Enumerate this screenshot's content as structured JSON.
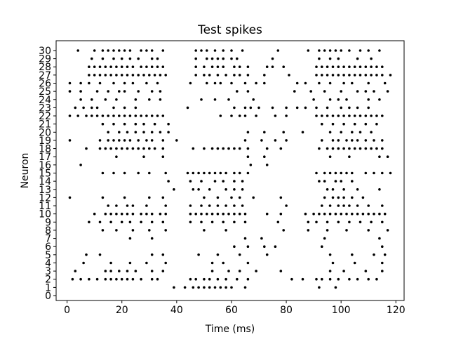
{
  "chart_data": {
    "type": "scatter",
    "kind": "raster",
    "title": "Test spikes",
    "xlabel": "Time (ms)",
    "ylabel": "Neuron",
    "xlim": [
      -4,
      123
    ],
    "ylim": [
      -0.6,
      31.2
    ],
    "xticks": [
      0,
      20,
      40,
      60,
      80,
      100,
      120
    ],
    "yticks": [
      0,
      1,
      2,
      3,
      4,
      5,
      6,
      7,
      8,
      9,
      10,
      11,
      12,
      13,
      14,
      15,
      16,
      17,
      18,
      19,
      20,
      21,
      22,
      23,
      24,
      25,
      26,
      27,
      28,
      29,
      30
    ],
    "marker_color": "#000000",
    "spikes": [
      {
        "neuron": 30,
        "times": [
          4,
          10,
          13,
          15,
          17,
          19,
          21,
          23,
          27,
          29,
          31,
          35,
          47,
          49,
          51,
          54,
          57,
          60,
          64,
          77,
          88,
          92,
          94,
          96,
          98,
          100,
          103,
          107,
          110,
          114
        ]
      },
      {
        "neuron": 29,
        "times": [
          9,
          13,
          17,
          20,
          23,
          26,
          31,
          33,
          47,
          51,
          53,
          55,
          57,
          60,
          62,
          75,
          92,
          96,
          99,
          106,
          111
        ]
      },
      {
        "neuron": 28,
        "times": [
          8,
          10,
          12,
          14,
          16,
          18,
          20,
          22,
          24,
          27,
          29,
          31,
          33,
          35,
          47,
          50,
          53,
          55,
          57,
          61,
          63,
          66,
          73,
          75,
          79,
          91,
          93,
          95,
          97,
          99,
          101,
          103,
          105,
          107,
          109,
          111,
          113,
          115
        ]
      },
      {
        "neuron": 27,
        "times": [
          8,
          10,
          12,
          14,
          16,
          18,
          20,
          22,
          24,
          26,
          28,
          30,
          32,
          34,
          36,
          47,
          50,
          52,
          55,
          58,
          61,
          63,
          66,
          72,
          81,
          91,
          93,
          95,
          97,
          99,
          101,
          103,
          105,
          107,
          109,
          111,
          113,
          115,
          118
        ]
      },
      {
        "neuron": 26,
        "times": [
          1,
          5,
          8,
          12,
          17,
          21,
          24,
          29,
          33,
          45,
          51,
          54,
          56,
          60,
          65,
          69,
          72,
          84,
          87,
          92,
          96,
          101,
          104,
          110,
          116
        ]
      },
      {
        "neuron": 25,
        "times": [
          1,
          5,
          11,
          15,
          19,
          21,
          26,
          31,
          34,
          62,
          66,
          83,
          89,
          94,
          100,
          106,
          109,
          112,
          117
        ]
      },
      {
        "neuron": 24,
        "times": [
          5,
          9,
          14,
          18,
          25,
          30,
          34,
          49,
          54,
          59,
          68,
          90,
          96,
          99,
          102,
          110,
          114
        ]
      },
      {
        "neuron": 23,
        "times": [
          3,
          6,
          9,
          11,
          17,
          21,
          25,
          44,
          61,
          65,
          67,
          70,
          75,
          80,
          84,
          87,
          91,
          95,
          100,
          103,
          106,
          110
        ]
      },
      {
        "neuron": 22,
        "times": [
          1,
          4,
          7,
          9,
          11,
          13,
          15,
          17,
          19,
          21,
          23,
          25,
          27,
          29,
          31,
          33,
          35,
          56,
          60,
          63,
          65,
          69,
          76,
          80,
          91,
          93,
          95,
          97,
          99,
          101,
          103,
          105,
          107,
          109,
          111,
          113,
          115
        ]
      },
      {
        "neuron": 21,
        "times": [
          13,
          17,
          21,
          25,
          28,
          32,
          37,
          93,
          97,
          101,
          105,
          109,
          113
        ]
      },
      {
        "neuron": 20,
        "times": [
          15,
          19,
          22,
          25,
          28,
          31,
          34,
          37,
          66,
          72,
          79,
          86,
          96,
          100,
          104,
          107,
          111
        ]
      },
      {
        "neuron": 19,
        "times": [
          1,
          12,
          15,
          17,
          19,
          21,
          23,
          26,
          29,
          31,
          35,
          40,
          65,
          71,
          76,
          80,
          93,
          97,
          99,
          102,
          104,
          106,
          109,
          112,
          115
        ]
      },
      {
        "neuron": 18,
        "times": [
          7,
          12,
          14,
          16,
          18,
          20,
          22,
          24,
          26,
          28,
          30,
          32,
          35,
          46,
          50,
          53,
          55,
          57,
          59,
          61,
          63,
          66,
          73,
          78,
          92,
          95,
          97,
          99,
          101,
          103,
          105,
          107,
          109,
          111,
          113,
          115
        ]
      },
      {
        "neuron": 17,
        "times": [
          18,
          28,
          35,
          66,
          72,
          96,
          103,
          114,
          117
        ]
      },
      {
        "neuron": 16,
        "times": [
          5,
          67,
          73
        ]
      },
      {
        "neuron": 15,
        "times": [
          13,
          17,
          21,
          26,
          30,
          36,
          44,
          46,
          48,
          50,
          52,
          54,
          56,
          58,
          61,
          63,
          66,
          91,
          94,
          96,
          98,
          100,
          102,
          104,
          109,
          112,
          115,
          118
        ]
      },
      {
        "neuron": 14,
        "times": [
          37,
          45,
          49,
          54,
          57,
          61,
          64,
          92,
          94,
          98,
          100,
          104
        ]
      },
      {
        "neuron": 13,
        "times": [
          39,
          46,
          48,
          52,
          58,
          61,
          64,
          95,
          97,
          101,
          106,
          114
        ]
      },
      {
        "neuron": 12,
        "times": [
          1,
          13,
          21,
          30,
          35,
          50,
          55,
          60,
          63,
          68,
          78,
          94,
          97,
          99,
          101,
          104,
          108
        ]
      },
      {
        "neuron": 11,
        "times": [
          15,
          18,
          22,
          24,
          29,
          36,
          45,
          49,
          52,
          55,
          58,
          61,
          64,
          80,
          93,
          96,
          99,
          101,
          103,
          106,
          110,
          115
        ]
      },
      {
        "neuron": 10,
        "times": [
          10,
          14,
          16,
          18,
          20,
          22,
          24,
          27,
          29,
          31,
          34,
          36,
          45,
          47,
          49,
          51,
          53,
          55,
          57,
          59,
          61,
          63,
          65,
          73,
          78,
          87,
          90,
          92,
          94,
          96,
          98,
          100,
          102,
          104,
          106,
          108,
          110,
          112,
          114,
          116
        ]
      },
      {
        "neuron": 9,
        "times": [
          8,
          12,
          16,
          20,
          23,
          27,
          31,
          35,
          45,
          49,
          53,
          57,
          61,
          65,
          77,
          88,
          91,
          95,
          99,
          103,
          107,
          111,
          115
        ]
      },
      {
        "neuron": 8,
        "times": [
          13,
          18,
          24,
          30,
          36,
          50,
          58,
          79,
          88,
          95,
          102,
          110,
          117
        ]
      },
      {
        "neuron": 7,
        "times": [
          23,
          31,
          65,
          71,
          94,
          114
        ]
      },
      {
        "neuron": 6,
        "times": [
          61,
          66,
          72,
          76,
          93,
          115
        ]
      },
      {
        "neuron": 5,
        "times": [
          7,
          12,
          31,
          35,
          48,
          55,
          63,
          73,
          96,
          104,
          112,
          116
        ]
      },
      {
        "neuron": 4,
        "times": [
          6,
          16,
          23,
          29,
          36,
          53,
          57,
          66,
          97,
          105,
          115
        ]
      },
      {
        "neuron": 3,
        "times": [
          3,
          14,
          16,
          19,
          22,
          25,
          31,
          35,
          53,
          59,
          63,
          69,
          78,
          96,
          101,
          109,
          115
        ]
      },
      {
        "neuron": 2,
        "times": [
          2,
          5,
          8,
          11,
          14,
          16,
          18,
          20,
          22,
          24,
          27,
          31,
          33,
          45,
          47,
          50,
          52,
          55,
          58,
          62,
          66,
          82,
          86,
          91,
          93,
          96,
          99,
          103,
          106,
          110,
          113
        ]
      },
      {
        "neuron": 1,
        "times": [
          39,
          43,
          46,
          48,
          50,
          52,
          54,
          56,
          58,
          60,
          65,
          92,
          98
        ]
      }
    ]
  }
}
